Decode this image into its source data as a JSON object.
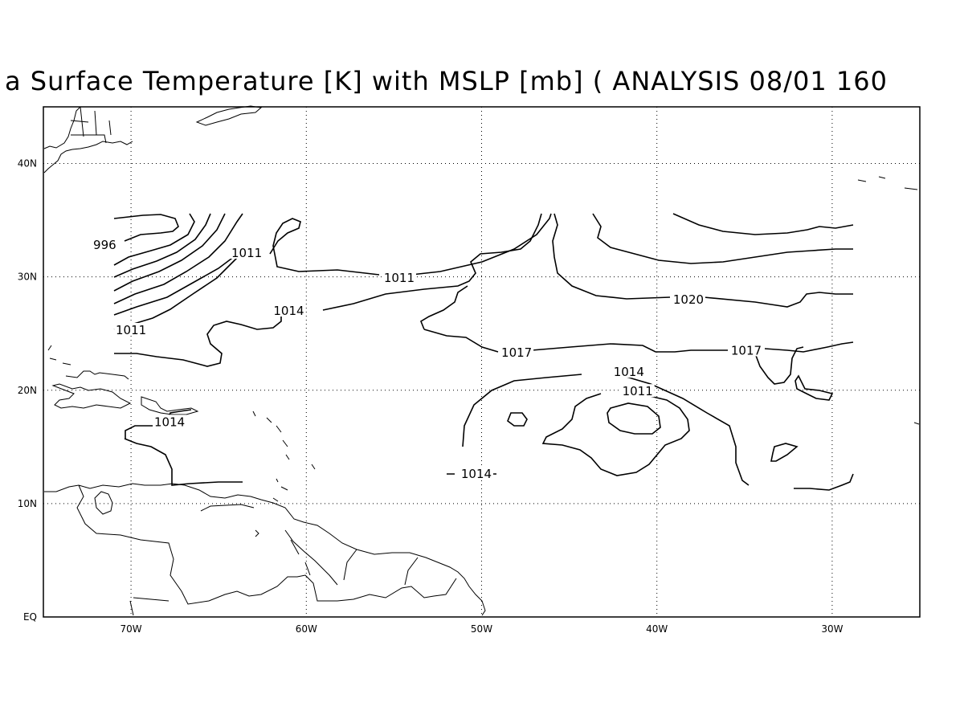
{
  "title": "a Surface Temperature [K] with MSLP [mb] ( ANALYSIS 08/01 160",
  "map": {
    "lon_range": [
      -75,
      -25
    ],
    "lat_range": [
      0,
      45
    ],
    "grid": true,
    "lon_ticks": [
      {
        "lon": -70,
        "label": "70W"
      },
      {
        "lon": -60,
        "label": "60W"
      },
      {
        "lon": -50,
        "label": "50W"
      },
      {
        "lon": -40,
        "label": "40W"
      },
      {
        "lon": -30,
        "label": "30W"
      }
    ],
    "lat_ticks": [
      {
        "lat": 0,
        "label": "EQ"
      },
      {
        "lat": 10,
        "label": "10N"
      },
      {
        "lat": 20,
        "label": "20N"
      },
      {
        "lat": 30,
        "label": "30N"
      },
      {
        "lat": 40,
        "label": "40N"
      }
    ]
  },
  "contour_labels": [
    {
      "value": "996",
      "lon": -71.5,
      "lat": 32.8
    },
    {
      "value": "1011",
      "lon": -63.4,
      "lat": 32.1
    },
    {
      "value": "1011",
      "lon": -70.0,
      "lat": 25.3
    },
    {
      "value": "1011",
      "lon": -54.7,
      "lat": 29.9
    },
    {
      "value": "1014",
      "lon": -61.0,
      "lat": 27.0
    },
    {
      "value": "1014",
      "lon": -67.8,
      "lat": 17.2
    },
    {
      "value": "1017",
      "lon": -48.0,
      "lat": 23.3
    },
    {
      "value": "1017",
      "lon": -34.9,
      "lat": 23.5
    },
    {
      "value": "1020",
      "lon": -38.2,
      "lat": 28.0
    },
    {
      "value": "1014",
      "lon": -41.6,
      "lat": 21.6
    },
    {
      "value": "1011",
      "lon": -41.1,
      "lat": 19.9
    },
    {
      "value": "1014",
      "lon": -50.3,
      "lat": 12.6
    }
  ]
}
